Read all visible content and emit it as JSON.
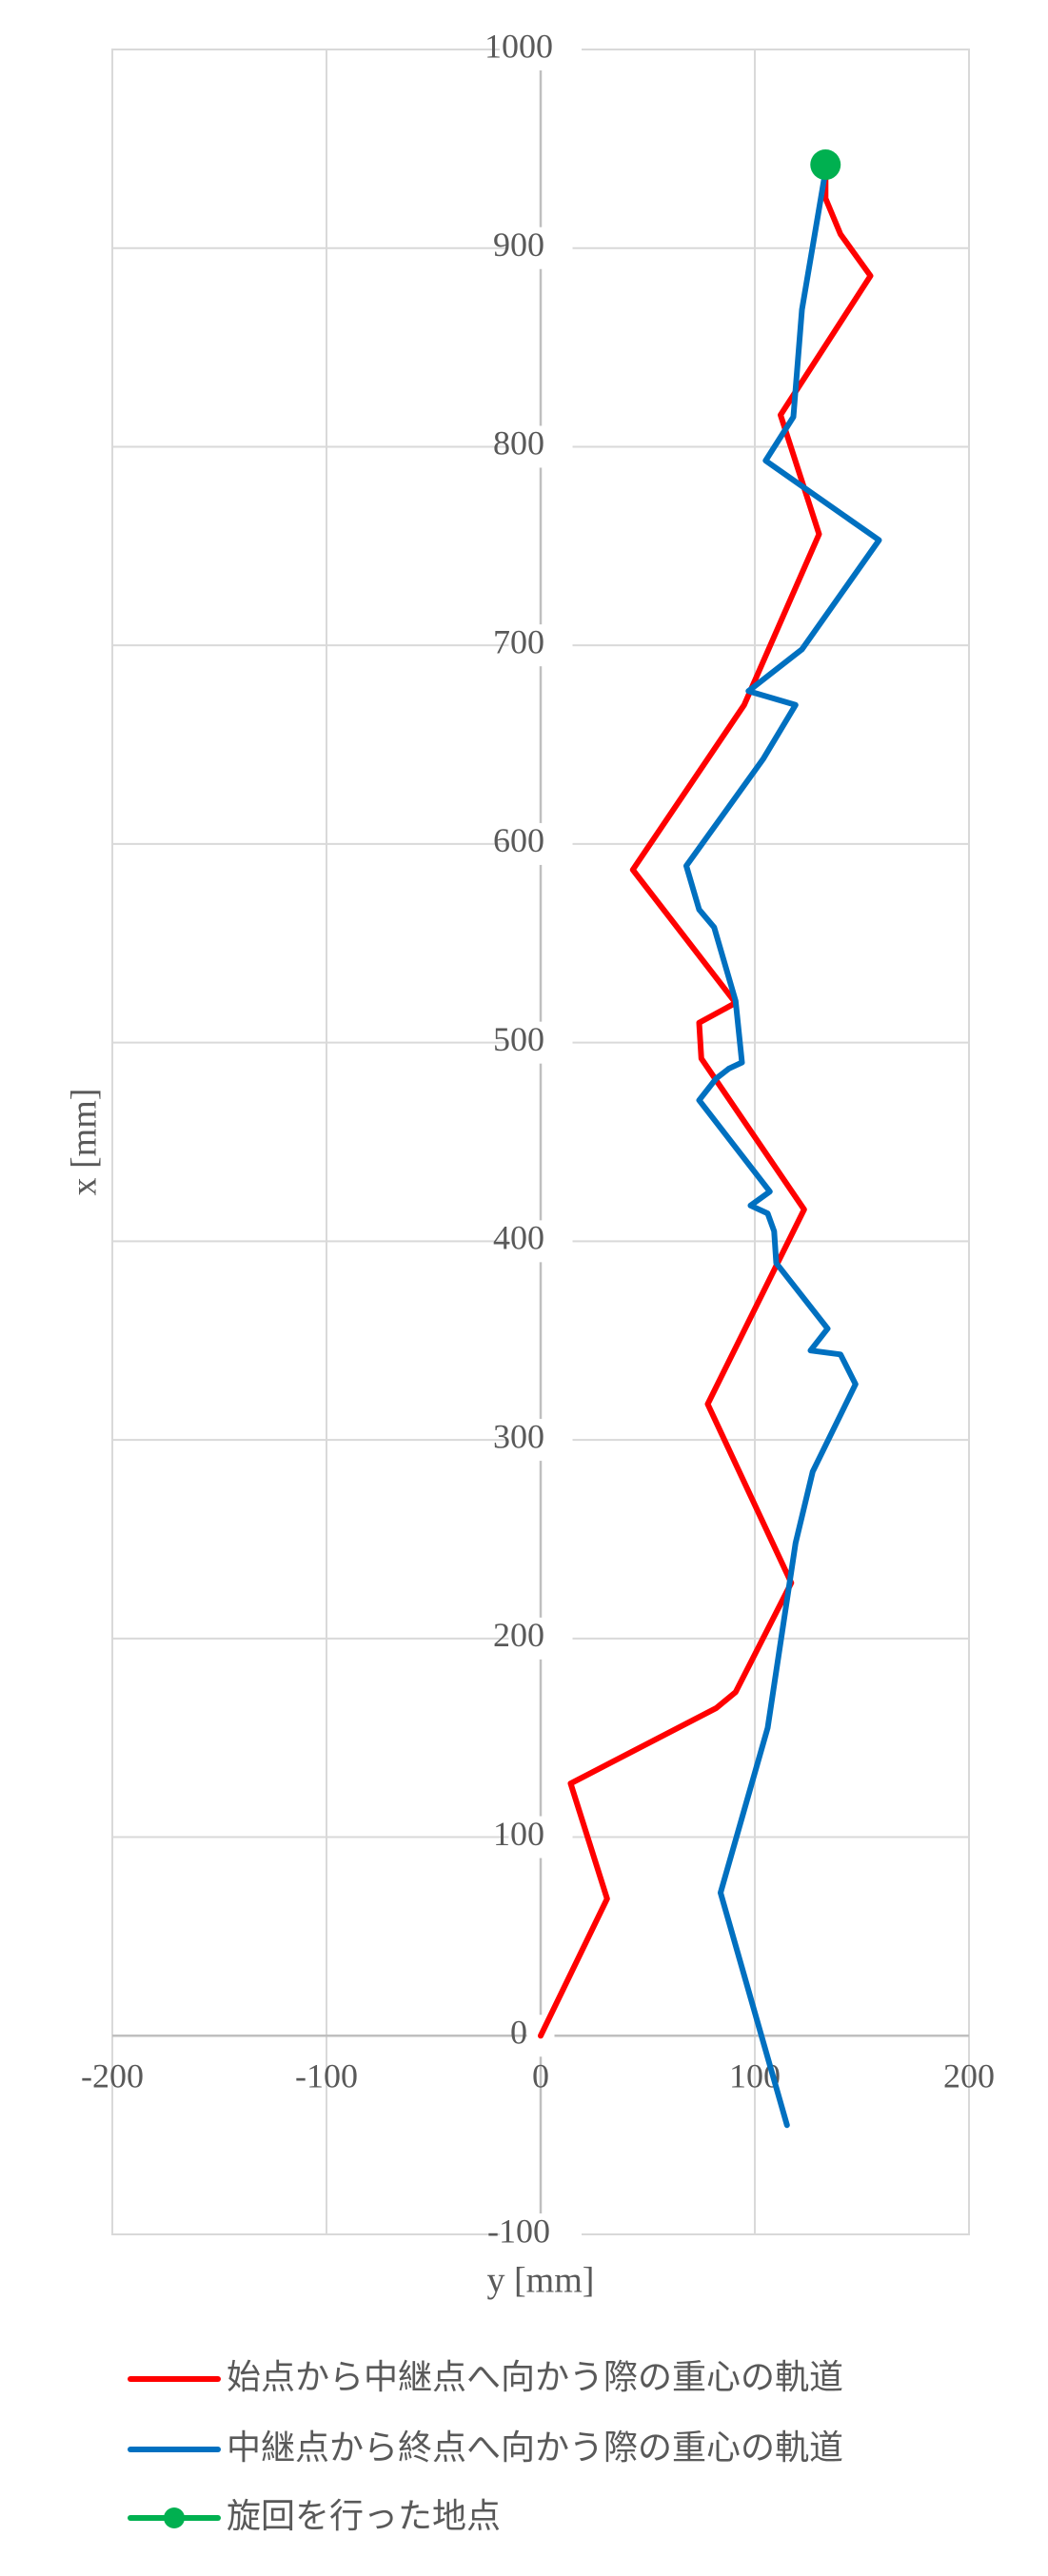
{
  "chart_data": {
    "type": "line",
    "xlabel": "y [mm]",
    "ylabel": "x [mm]",
    "xlim": [
      -200,
      200
    ],
    "ylim": [
      -100,
      1000
    ],
    "xticks": [
      "-200",
      "-100",
      "0",
      "100",
      "200"
    ],
    "yticks": [
      "-100",
      "0",
      "100",
      "200",
      "300",
      "400",
      "500",
      "600",
      "700",
      "800",
      "900",
      "1000"
    ],
    "xtick_values": [
      -200,
      -100,
      0,
      100,
      200
    ],
    "ytick_values": [
      -100,
      0,
      100,
      200,
      300,
      400,
      500,
      600,
      700,
      800,
      900,
      1000
    ],
    "grid": true,
    "legend_position": "bottom",
    "series": [
      {
        "name": "始点から中継点へ向かう際の重心の軌道",
        "color": "#ff0000",
        "marker": "none",
        "points": [
          [
            0,
            0
          ],
          [
            31,
            69
          ],
          [
            14,
            127
          ],
          [
            82,
            165
          ],
          [
            91,
            173
          ],
          [
            117,
            228
          ],
          [
            78,
            318
          ],
          [
            123,
            416
          ],
          [
            75,
            492
          ],
          [
            74,
            510
          ],
          [
            91,
            520
          ],
          [
            43,
            587
          ],
          [
            95,
            670
          ],
          [
            130,
            756
          ],
          [
            112,
            816
          ],
          [
            154,
            886
          ],
          [
            140,
            907
          ],
          [
            133,
            925
          ],
          [
            133,
            942
          ]
        ]
      },
      {
        "name": "中継点から終点へ向かう際の重心の軌道",
        "color": "#0070c0",
        "marker": "none",
        "points": [
          [
            115,
            -45
          ],
          [
            84,
            72
          ],
          [
            106,
            155
          ],
          [
            119,
            248
          ],
          [
            127,
            284
          ],
          [
            147,
            328
          ],
          [
            140,
            343
          ],
          [
            126,
            345
          ],
          [
            134,
            356
          ],
          [
            110,
            389
          ],
          [
            109,
            405
          ],
          [
            106,
            414
          ],
          [
            98,
            418
          ],
          [
            107,
            425
          ],
          [
            74,
            471
          ],
          [
            82,
            482
          ],
          [
            88,
            487
          ],
          [
            94,
            490
          ],
          [
            91,
            521
          ],
          [
            81,
            558
          ],
          [
            74,
            567
          ],
          [
            68,
            589
          ],
          [
            104,
            643
          ],
          [
            119,
            670
          ],
          [
            97,
            677
          ],
          [
            122,
            698
          ],
          [
            158,
            753
          ],
          [
            105,
            793
          ],
          [
            118,
            815
          ],
          [
            122,
            869
          ],
          [
            133,
            939
          ]
        ]
      },
      {
        "name": "旋回を行った地点",
        "color": "#00b050",
        "marker": "circle",
        "points": [
          [
            133,
            942
          ]
        ]
      }
    ]
  }
}
